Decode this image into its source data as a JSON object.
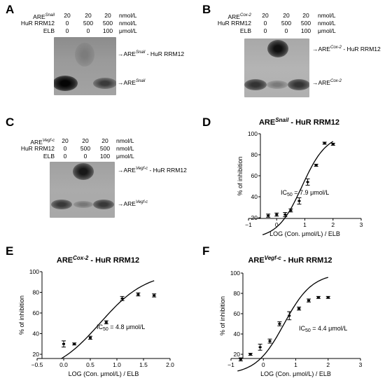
{
  "panels": {
    "A": {
      "letter": "A",
      "table": {
        "rows": [
          {
            "label_main": "ARE",
            "label_sup": "Snail",
            "values": [
              "20",
              "20",
              "20"
            ],
            "unit": "nmol/L"
          },
          {
            "label_main": "HuR RRM12",
            "label_sup": "",
            "values": [
              "0",
              "500",
              "500"
            ],
            "unit": "nmol/L"
          },
          {
            "label_main": "ELB",
            "label_sup": "",
            "values": [
              "0",
              "0",
              "100"
            ],
            "unit": "μmol/L"
          }
        ]
      },
      "bands": [
        {
          "main": "→ARE",
          "sup": "Snail",
          "tail": " - HuR RRM12"
        },
        {
          "main": "→ARE",
          "sup": "Snail",
          "tail": ""
        }
      ]
    },
    "B": {
      "letter": "B",
      "table": {
        "rows": [
          {
            "label_main": "ARE",
            "label_sup": "Cox-2",
            "values": [
              "20",
              "20",
              "20"
            ],
            "unit": "nmol/L"
          },
          {
            "label_main": "HuR RRM12",
            "label_sup": "",
            "values": [
              "0",
              "500",
              "500"
            ],
            "unit": "nmol/L"
          },
          {
            "label_main": "ELB",
            "label_sup": "",
            "values": [
              "0",
              "0",
              "100"
            ],
            "unit": "μmol/L"
          }
        ]
      },
      "bands": [
        {
          "main": "→ARE",
          "sup": "Cox-2",
          "tail": " - HuR RRM12"
        },
        {
          "main": "→ARE",
          "sup": "Cox-2",
          "tail": ""
        }
      ]
    },
    "C": {
      "letter": "C",
      "table": {
        "rows": [
          {
            "label_main": "ARE",
            "label_sup": "Vegf-c",
            "values": [
              "20",
              "20",
              "20"
            ],
            "unit": "nmol/L"
          },
          {
            "label_main": "HuR RRM12",
            "label_sup": "",
            "values": [
              "0",
              "500",
              "500"
            ],
            "unit": "nmol/L"
          },
          {
            "label_main": "ELB",
            "label_sup": "",
            "values": [
              "0",
              "0",
              "100"
            ],
            "unit": "μmol/L"
          }
        ]
      },
      "bands": [
        {
          "main": "→ARE",
          "sup": "Vegf-c",
          "tail": " - HuR RRM12"
        },
        {
          "main": "→ARE",
          "sup": "Vegf-c",
          "tail": ""
        }
      ]
    },
    "D": {
      "letter": "D"
    },
    "E": {
      "letter": "E"
    },
    "F": {
      "letter": "F"
    }
  },
  "chart_data": [
    {
      "panel": "D",
      "type": "scatter",
      "title_main": "ARE",
      "title_sup": "Snail",
      "title_tail": " - HuR RRM12",
      "xlabel": "LOG (Con. μmol/L) / ELB",
      "ylabel": "% of inhibition",
      "xlim": [
        -1,
        3
      ],
      "ylim": [
        20,
        100
      ],
      "xticks": [
        -1,
        0,
        1,
        2,
        3
      ],
      "yticks": [
        20,
        40,
        60,
        80,
        100
      ],
      "annotation": "IC50 = 7.9 μmol/L",
      "annotation_main": "IC",
      "annotation_sub": "50",
      "annotation_tail": " = 7.9 μmol/L",
      "points": [
        {
          "x": -0.3,
          "y": 22,
          "err": 1.5
        },
        {
          "x": 0.0,
          "y": 23,
          "err": 1.5
        },
        {
          "x": 0.3,
          "y": 23,
          "err": 2
        },
        {
          "x": 0.5,
          "y": 27,
          "err": 1.5
        },
        {
          "x": 0.8,
          "y": 36,
          "err": 3
        },
        {
          "x": 1.1,
          "y": 54,
          "err": 3
        },
        {
          "x": 1.4,
          "y": 70,
          "err": 1
        },
        {
          "x": 1.7,
          "y": 91,
          "err": 1
        },
        {
          "x": 2.0,
          "y": 90,
          "err": 1
        }
      ],
      "fit": {
        "bottom": 0,
        "top": 100,
        "logIC50": 0.9,
        "hill": 1.0,
        "xrange": [
          -0.5,
          2.0
        ]
      }
    },
    {
      "panel": "E",
      "type": "scatter",
      "title_main": "ARE",
      "title_sup": "Cox-2",
      "title_tail": " - HuR RRM12",
      "xlabel": "LOG (Con. μmol/L) / ELB",
      "ylabel": "% of inhibition",
      "xlim": [
        -0.5,
        2.0
      ],
      "ylim": [
        20,
        100
      ],
      "xticks": [
        -0.5,
        0.0,
        0.5,
        1.0,
        1.5,
        2.0
      ],
      "yticks": [
        20,
        40,
        60,
        80,
        100
      ],
      "annotation": "IC50 = 4.8 μmol/L",
      "annotation_main": "IC",
      "annotation_sub": "50",
      "annotation_tail": " = 4.8 μmol/L",
      "points": [
        {
          "x": 0.0,
          "y": 30,
          "err": 3
        },
        {
          "x": 0.2,
          "y": 30,
          "err": 1
        },
        {
          "x": 0.5,
          "y": 36,
          "err": 1.5
        },
        {
          "x": 0.8,
          "y": 51,
          "err": 1.5
        },
        {
          "x": 1.1,
          "y": 74,
          "err": 2
        },
        {
          "x": 1.4,
          "y": 78,
          "err": 1.5
        },
        {
          "x": 1.7,
          "y": 77,
          "err": 1.5
        }
      ],
      "fit": {
        "bottom": 0,
        "top": 100,
        "logIC50": 0.68,
        "hill": 1.0,
        "xrange": [
          -0.05,
          1.7
        ]
      }
    },
    {
      "panel": "F",
      "type": "scatter",
      "title_main": "ARE",
      "title_sup": "Vegf-c",
      "title_tail": " - HuR RRM12",
      "xlabel": "LOG (Con. μmol/L) / ELB",
      "ylabel": "% of inhibition",
      "xlim": [
        -1,
        3
      ],
      "ylim": [
        20,
        100
      ],
      "xticks": [
        -1,
        0,
        1,
        2,
        3
      ],
      "yticks": [
        20,
        40,
        60,
        80,
        100
      ],
      "annotation": "IC50 = 4.4 μmol/L",
      "annotation_main": "IC",
      "annotation_sub": "50",
      "annotation_tail": " = 4.4 μmol/L",
      "points": [
        {
          "x": -0.7,
          "y": 15,
          "err": 1.5
        },
        {
          "x": -0.4,
          "y": 20,
          "err": 1
        },
        {
          "x": -0.1,
          "y": 27,
          "err": 3
        },
        {
          "x": 0.2,
          "y": 33,
          "err": 2
        },
        {
          "x": 0.5,
          "y": 50,
          "err": 2
        },
        {
          "x": 0.8,
          "y": 58,
          "err": 4
        },
        {
          "x": 1.1,
          "y": 65,
          "err": 1.5
        },
        {
          "x": 1.4,
          "y": 73,
          "err": 1.5
        },
        {
          "x": 1.7,
          "y": 76,
          "err": 1
        },
        {
          "x": 2.0,
          "y": 76,
          "err": 1
        }
      ],
      "fit": {
        "bottom": 0,
        "top": 100,
        "logIC50": 0.64,
        "hill": 1.0,
        "xrange": [
          -0.8,
          2.0
        ]
      }
    }
  ]
}
